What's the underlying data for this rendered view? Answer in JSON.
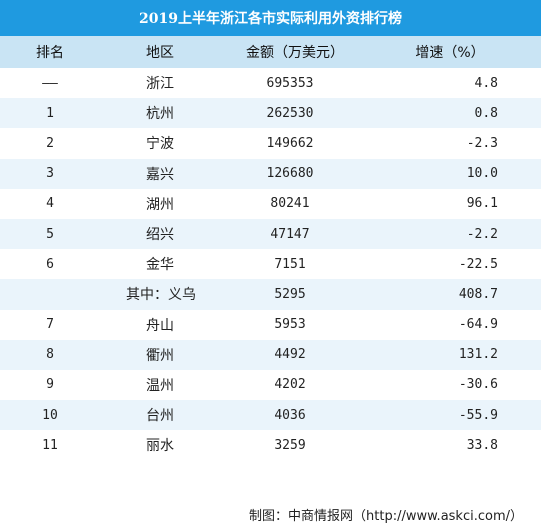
{
  "colors": {
    "title_bg": "#1f9ae0",
    "header_bg": "#c9e4f4",
    "stripe": "#eaf4fb"
  },
  "chart_data": {
    "type": "table",
    "title": "2019上半年浙江各市实际利用外资排行榜",
    "columns": [
      "排名",
      "地区",
      "金额（万美元）",
      "增速（%）"
    ],
    "rows": [
      {
        "rank": "——",
        "region": "浙江",
        "amount": "695353",
        "growth": "4.8"
      },
      {
        "rank": "1",
        "region": "杭州",
        "amount": "262530",
        "growth": "0.8"
      },
      {
        "rank": "2",
        "region": "宁波",
        "amount": "149662",
        "growth": "-2.3"
      },
      {
        "rank": "3",
        "region": "嘉兴",
        "amount": "126680",
        "growth": "10.0"
      },
      {
        "rank": "4",
        "region": "湖州",
        "amount": "80241",
        "growth": "96.1"
      },
      {
        "rank": "5",
        "region": "绍兴",
        "amount": "47147",
        "growth": "-2.2"
      },
      {
        "rank": "6",
        "region": "金华",
        "amount": "7151",
        "growth": "-22.5"
      },
      {
        "rank": "",
        "region": "其中：义乌",
        "amount": "5295",
        "growth": "408.7"
      },
      {
        "rank": "7",
        "region": "舟山",
        "amount": "5953",
        "growth": "-64.9"
      },
      {
        "rank": "8",
        "region": "衢州",
        "amount": "4492",
        "growth": "131.2"
      },
      {
        "rank": "9",
        "region": "温州",
        "amount": "4202",
        "growth": "-30.6"
      },
      {
        "rank": "10",
        "region": "台州",
        "amount": "4036",
        "growth": "-55.9"
      },
      {
        "rank": "11",
        "region": "丽水",
        "amount": "3259",
        "growth": "33.8"
      }
    ],
    "source": "制图：中商情报网（http://www.askci.com/）"
  }
}
